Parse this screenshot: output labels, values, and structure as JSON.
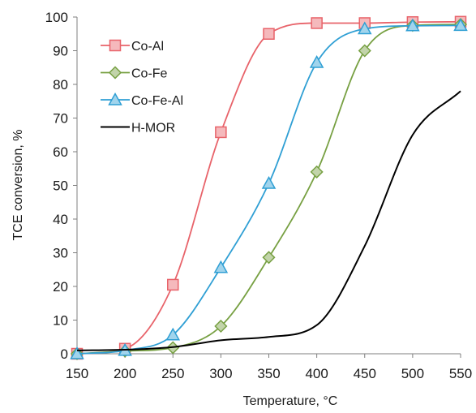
{
  "chart_data": {
    "type": "line",
    "xlabel": "Temperature, °C",
    "ylabel": "TCE conversion, %",
    "xlim": [
      150,
      550
    ],
    "ylim": [
      0,
      100
    ],
    "x_ticks": [
      "150",
      "200",
      "250",
      "300",
      "350",
      "400",
      "450",
      "500",
      "550"
    ],
    "y_ticks": [
      "0",
      "10",
      "20",
      "30",
      "40",
      "50",
      "60",
      "70",
      "80",
      "90",
      "100"
    ],
    "grid": false,
    "legend_position": "top-left",
    "series": [
      {
        "name": "Co-Al",
        "color": "#e8636a",
        "marker": "square",
        "x": [
          150,
          200,
          250,
          300,
          350,
          400,
          450,
          500,
          550
        ],
        "y": [
          0,
          1.5,
          20.5,
          65.8,
          95,
          98.2,
          98.2,
          98.5,
          98.6
        ]
      },
      {
        "name": "Co-Fe",
        "color": "#77a042",
        "marker": "diamond",
        "x": [
          150,
          200,
          250,
          300,
          350,
          400,
          450,
          500,
          550
        ],
        "y": [
          0,
          0.8,
          1.8,
          8.2,
          28.6,
          54,
          90,
          97.5,
          97.8
        ]
      },
      {
        "name": "Co-Fe-Al",
        "color": "#2f9fd4",
        "marker": "triangle",
        "x": [
          150,
          200,
          250,
          300,
          350,
          400,
          450,
          500,
          550
        ],
        "y": [
          0,
          1,
          5.6,
          25.6,
          50.6,
          86.5,
          96.5,
          97.4,
          97.5
        ]
      },
      {
        "name": "H-MOR",
        "color": "#000000",
        "marker": "none",
        "x": [
          150,
          200,
          250,
          300,
          350,
          400,
          450,
          500,
          550
        ],
        "y": [
          1,
          1.2,
          2,
          4,
          5,
          8.5,
          32,
          65,
          78
        ]
      }
    ]
  }
}
